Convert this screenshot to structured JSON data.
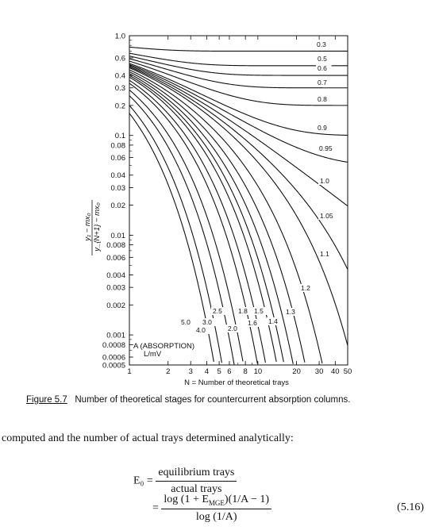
{
  "chart_data": {
    "type": "line",
    "ylabel_numerator": "y₁ − mx₀",
    "ylabel_denominator": "y_{N+1} − mx₀",
    "xlabel": "N = Number of theoretical trays",
    "x_scale": "log",
    "y_scale": "log",
    "xlim": [
      1,
      50
    ],
    "ylim": [
      0.0005,
      1.0
    ],
    "x_ticks": [
      1,
      2,
      3,
      4,
      5,
      6,
      8,
      10,
      20,
      30,
      40,
      50
    ],
    "x_tick_labels": [
      "1",
      "2",
      "3",
      "4",
      "5",
      "6",
      "8",
      "10",
      "20",
      "30",
      "40",
      "50"
    ],
    "y_ticks": [
      1.0,
      0.6,
      0.4,
      0.3,
      0.2,
      0.1,
      0.08,
      0.06,
      0.04,
      0.03,
      0.02,
      0.01,
      0.008,
      0.006,
      0.004,
      0.003,
      0.002,
      0.001,
      0.0008,
      0.0006,
      0.0005
    ],
    "y_tick_labels": [
      "1.0",
      "0.6",
      "0.4",
      "0.3",
      "0.2",
      "0.1",
      "0.08",
      "0.06",
      "0.04",
      "0.03",
      "0.02",
      "0.01",
      "0.008",
      "0.006",
      "0.004",
      "0.003",
      "0.002",
      "0.001",
      "0.0008",
      "0.0006",
      "0.0005"
    ],
    "annotation_line1": "A (ABSORPTION)",
    "annotation_line2": "L/mV",
    "series": [
      {
        "name": "0.3",
        "values_A": 0.3
      },
      {
        "name": "0.5",
        "values_A": 0.5
      },
      {
        "name": "0.6",
        "values_A": 0.6
      },
      {
        "name": "0.7",
        "values_A": 0.7
      },
      {
        "name": "0.8",
        "values_A": 0.8
      },
      {
        "name": "0.9",
        "values_A": 0.9
      },
      {
        "name": "0.95",
        "values_A": 0.95
      },
      {
        "name": "1.0",
        "values_A": 1.0
      },
      {
        "name": "1.05",
        "values_A": 1.05
      },
      {
        "name": "1.1",
        "values_A": 1.1
      },
      {
        "name": "1.2",
        "values_A": 1.2
      },
      {
        "name": "1.3",
        "values_A": 1.3
      },
      {
        "name": "1.4",
        "values_A": 1.4
      },
      {
        "name": "1.5",
        "values_A": 1.5
      },
      {
        "name": "1.6",
        "values_A": 1.6
      },
      {
        "name": "1.8",
        "values_A": 1.8
      },
      {
        "name": "2.0",
        "values_A": 2.0
      },
      {
        "name": "2.5",
        "values_A": 2.5
      },
      {
        "name": "3.0",
        "values_A": 3.0
      },
      {
        "name": "4.0",
        "values_A": 4.0
      },
      {
        "name": "5.0",
        "values_A": 5.0
      }
    ]
  },
  "caption": {
    "number": "Figure 5.7",
    "text": "Number of theoretical stages for countercurrent absorption columns."
  },
  "body": {
    "paragraph": "computed and the number of actual trays determined analytically:",
    "eq_lhs": "E₀ =",
    "eq1_num": "equilibrium trays",
    "eq1_den": "actual trays",
    "eq2_eq": "=",
    "eq2_num": "log (1 + E",
    "eq2_num_sub": "MGE",
    "eq2_num_rest": ")(1/A − 1)",
    "eq2_den": "log (1/A)",
    "eq_number": "(5.16)"
  }
}
